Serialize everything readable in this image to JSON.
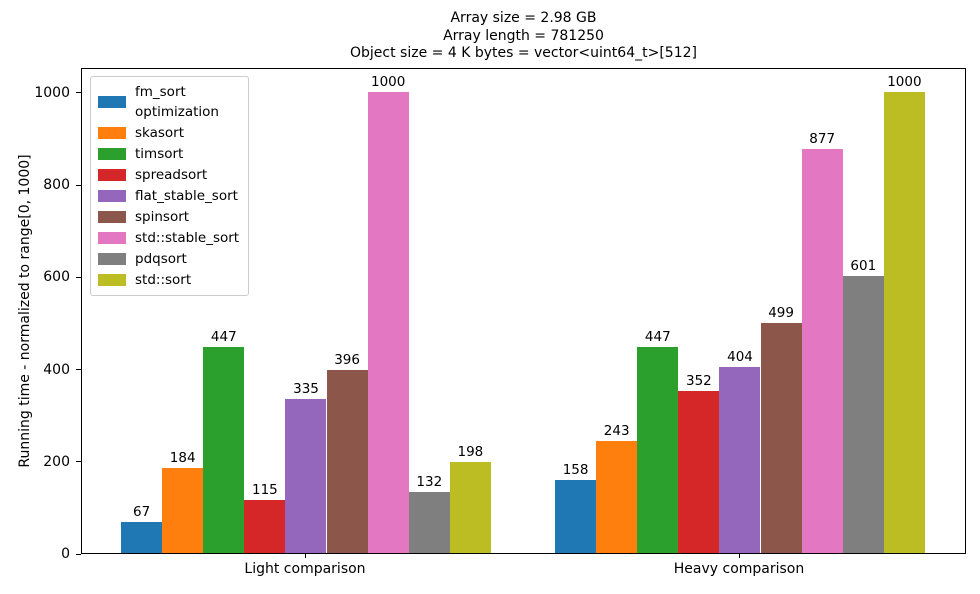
{
  "chart_data": {
    "type": "bar",
    "title_lines": [
      "Array size = 2.98 GB",
      "Array length = 781250",
      "Object size = 4 K bytes = vector<uint64_t>[512]"
    ],
    "categories": [
      "Light comparison",
      "Heavy comparison"
    ],
    "series": [
      {
        "name": "fm_sort optimization",
        "legend_label": "fm_sort\noptimization",
        "color": "#1f77b4",
        "values": [
          67,
          158
        ]
      },
      {
        "name": "skasort",
        "legend_label": "skasort",
        "color": "#ff7f0e",
        "values": [
          184,
          243
        ]
      },
      {
        "name": "timsort",
        "legend_label": "timsort",
        "color": "#2ca02c",
        "values": [
          447,
          447
        ]
      },
      {
        "name": "spreadsort",
        "legend_label": "spreadsort",
        "color": "#d62728",
        "values": [
          115,
          352
        ]
      },
      {
        "name": "flat_stable_sort",
        "legend_label": "flat_stable_sort",
        "color": "#9467bd",
        "values": [
          335,
          404
        ]
      },
      {
        "name": "spinsort",
        "legend_label": "spinsort",
        "color": "#8c564b",
        "values": [
          396,
          499
        ]
      },
      {
        "name": "std::stable_sort",
        "legend_label": "std::stable_sort",
        "color": "#e377c2",
        "values": [
          1000,
          877
        ]
      },
      {
        "name": "pdqsort",
        "legend_label": "pdqsort",
        "color": "#7f7f7f",
        "values": [
          132,
          601
        ]
      },
      {
        "name": "std::sort",
        "legend_label": "std::sort",
        "color": "#bcbd22",
        "values": [
          198,
          1000
        ]
      }
    ],
    "ylabel": "Running time - normalized to range[0, 1000]",
    "xlabel": "",
    "yticks": [
      0,
      200,
      400,
      600,
      800,
      1000
    ],
    "ylim": [
      0,
      1054
    ],
    "grid": false,
    "legend_position": "upper left",
    "bar_value_labels": true,
    "axis_color": "#000000"
  }
}
